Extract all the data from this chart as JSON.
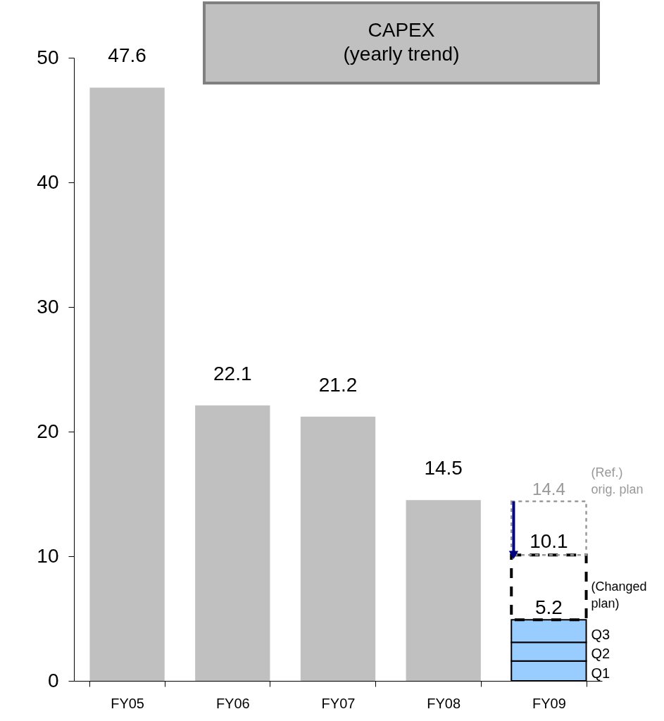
{
  "chart_data": {
    "type": "bar",
    "title": "CAPEX\n(yearly trend)",
    "categories": [
      "FY05",
      "FY06",
      "FY07",
      "FY08",
      "FY09"
    ],
    "stacked": true,
    "series": [
      {
        "color": "#c0c0c0",
        "values": [
          47.6,
          22.1,
          21.2,
          14.5,
          null
        ],
        "value_labels": [
          "47.6",
          "22.1",
          "21.2",
          "14.5",
          null
        ]
      },
      {
        "name": "Q1",
        "color": "#99ccff",
        "values": [
          null,
          null,
          null,
          null,
          1.6
        ]
      },
      {
        "name": "Q2",
        "color": "#99ccff",
        "values": [
          null,
          null,
          null,
          null,
          1.5
        ]
      },
      {
        "name": "Q3",
        "color": "#99ccff",
        "values": [
          null,
          null,
          null,
          null,
          1.8
        ]
      },
      {
        "name": "(Changed\nplan)",
        "color": "#000000",
        "line_style": "dashed",
        "values": [
          null,
          null,
          null,
          null,
          5.2
        ],
        "value_labels": [
          null,
          null,
          null,
          null,
          "5.2"
        ]
      },
      {
        "name": "(Ref.)\norig. plan",
        "color": "#999999",
        "line_style": "dotted",
        "values": [
          null,
          null,
          null,
          null,
          4.3
        ]
      }
    ],
    "totals": [
      null,
      null,
      null,
      null,
      "14.4"
    ],
    "annotations": [
      {
        "text": "10.1",
        "x": "FY09",
        "y": 10.1
      }
    ],
    "ylim": [
      0,
      50
    ],
    "yticks": [
      0,
      10,
      20,
      30,
      40,
      50
    ],
    "grid": false
  }
}
